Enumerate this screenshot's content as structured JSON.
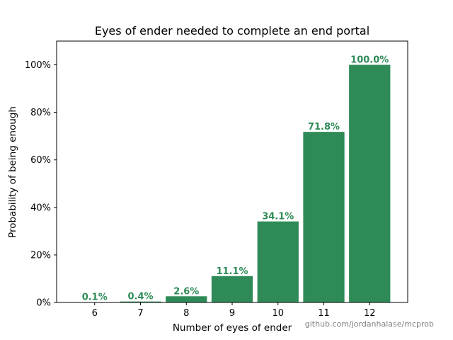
{
  "chart_data": {
    "type": "bar",
    "title": "Eyes of ender needed to complete an end portal",
    "xlabel": "Number of eyes of ender",
    "ylabel": "Probability of being enough",
    "categories": [
      "6",
      "7",
      "8",
      "9",
      "10",
      "11",
      "12"
    ],
    "values": [
      0.1,
      0.4,
      2.6,
      11.1,
      34.1,
      71.8,
      100.0
    ],
    "data_labels": [
      "0.1%",
      "0.4%",
      "2.6%",
      "11.1%",
      "34.1%",
      "71.8%",
      "100.0%"
    ],
    "ylim": [
      0,
      110
    ],
    "yticks": [
      0,
      20,
      40,
      60,
      80,
      100
    ],
    "ytick_labels": [
      "0%",
      "20%",
      "40%",
      "60%",
      "80%",
      "100%"
    ],
    "grid": false,
    "bar_color": "#2e8b57",
    "label_color": "#2e8b57"
  },
  "credit": "github.com/jordanhalase/mcprob"
}
